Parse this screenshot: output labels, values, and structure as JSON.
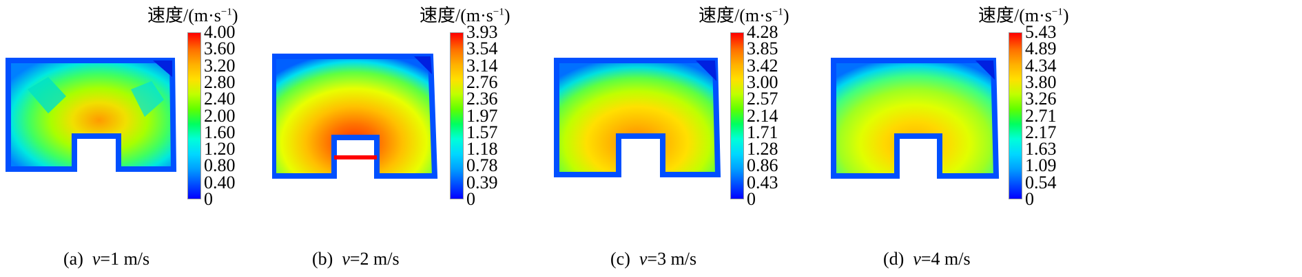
{
  "colorbar_title_main": "速度/(m",
  "colorbar_title_dot": "·",
  "colorbar_title_s": "s",
  "colorbar_title_exp": "−1",
  "colorbar_title_close": ")",
  "panels": [
    {
      "label": "(a)",
      "var": "v",
      "eq": "=1 m/s",
      "ticks": [
        "4.00",
        "3.60",
        "3.20",
        "2.80",
        "2.40",
        "2.00",
        "1.60",
        "1.20",
        "0.80",
        "0.40",
        "0"
      ]
    },
    {
      "label": "(b)",
      "var": "v",
      "eq": "=2 m/s",
      "ticks": [
        "3.93",
        "3.54",
        "3.14",
        "2.76",
        "2.36",
        "1.97",
        "1.57",
        "1.18",
        "0.78",
        "0.39",
        "0"
      ]
    },
    {
      "label": "(c)",
      "var": "v",
      "eq": "=3 m/s",
      "ticks": [
        "4.28",
        "3.85",
        "3.42",
        "3.00",
        "2.57",
        "2.14",
        "1.71",
        "1.28",
        "0.86",
        "0.43",
        "0"
      ]
    },
    {
      "label": "(d)",
      "var": "v",
      "eq": "=4 m/s",
      "ticks": [
        "5.43",
        "4.89",
        "4.34",
        "3.80",
        "3.26",
        "2.71",
        "2.17",
        "1.63",
        "1.09",
        "0.54",
        "0"
      ]
    }
  ]
}
